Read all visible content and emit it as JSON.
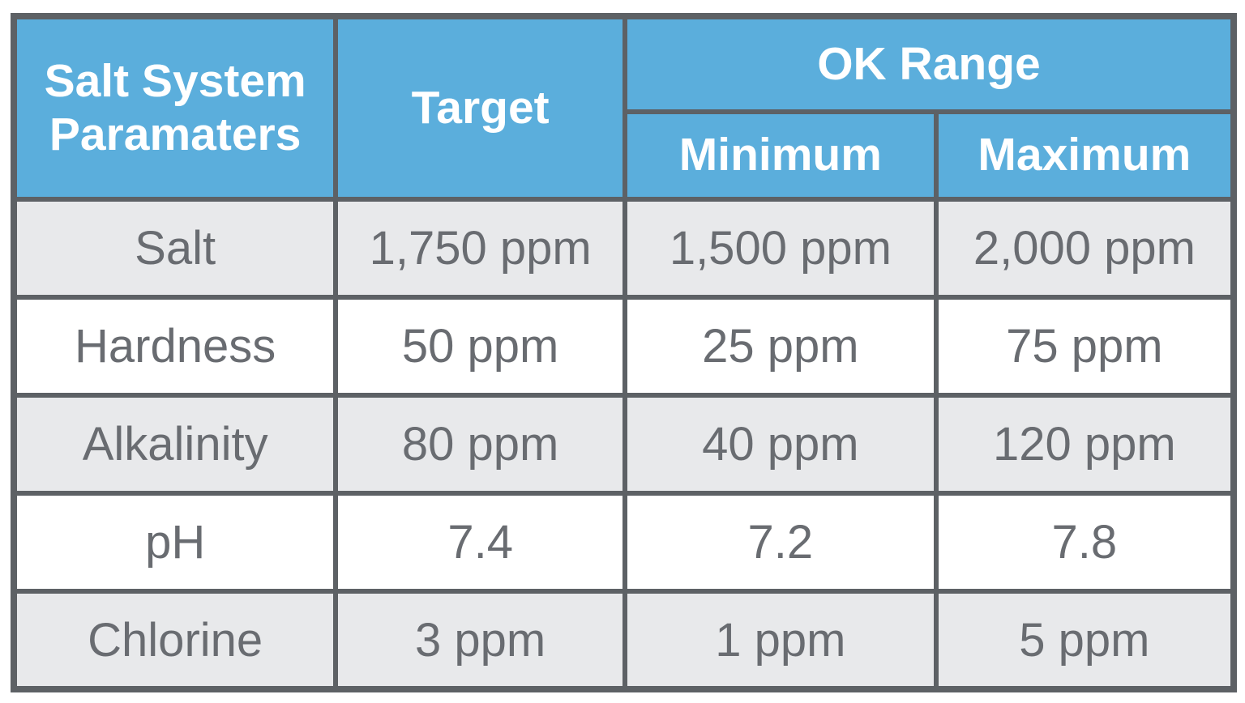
{
  "chart_data": {
    "type": "table",
    "header": {
      "parameters": "Salt System Paramaters",
      "target": "Target",
      "ok_range": "OK Range",
      "minimum": "Minimum",
      "maximum": "Maximum"
    },
    "rows": [
      {
        "param": "Salt",
        "target": "1,750 ppm",
        "min": "1,500 ppm",
        "max": "2,000 ppm"
      },
      {
        "param": "Hardness",
        "target": "50 ppm",
        "min": "25 ppm",
        "max": "75 ppm"
      },
      {
        "param": "Alkalinity",
        "target": "80 ppm",
        "min": "40 ppm",
        "max": "120 ppm"
      },
      {
        "param": "pH",
        "target": "7.4",
        "min": "7.2",
        "max": "7.8"
      },
      {
        "param": "Chlorine",
        "target": "3 ppm",
        "min": "1 ppm",
        "max": "5 ppm"
      }
    ],
    "layout": {
      "striped_rows": "odd rows gray starting with Salt",
      "header_spans": "parameters and target span 2 header rows; ok_range spans minimum and maximum columns"
    }
  },
  "colors": {
    "header_bg": "#5baedc",
    "header_text": "#ffffff",
    "border": "#5d6165",
    "row_bg": "#ffffff",
    "row_alt_bg": "#e8e9eb",
    "cell_text": "#696c71",
    "page_bg": "#ffffff"
  }
}
